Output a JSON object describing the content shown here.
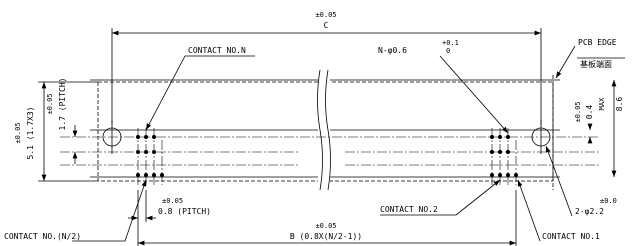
{
  "drawing": {
    "width_dim": {
      "tolerance": "±0.05",
      "label": "C"
    },
    "contact_n": "CONTACT NO.N",
    "hole_callout": {
      "label": "N-φ0.6",
      "upper_tol": "+0.1",
      "lower_tol": "0"
    },
    "pcb_edge": {
      "label": "PCB EDGE",
      "label_jp": "基板端面"
    },
    "left_dims": [
      {
        "tolerance": "±0.05",
        "label": "5.1 (1.7X3)"
      },
      {
        "tolerance": "±0.05",
        "label": "1.7 (PITCH)"
      }
    ],
    "right_dims": [
      {
        "tolerance": "±0.05",
        "label": "0.4"
      },
      {
        "label": "8.6",
        "suffix": "MAX"
      }
    ],
    "pitch_dim": {
      "tolerance": "±0.05",
      "label": "0.8 (PITCH)"
    },
    "contact_2": "CONTACT NO.2",
    "mount_hole": {
      "tolerance": "±0.0",
      "label": "2-φ2.2"
    },
    "b_dim": {
      "tolerance": "±0.05",
      "label": "B (0.8X(N/2-1))"
    },
    "contact_half": "CONTACT NO.(N/2)",
    "contact_1": "CONTACT NO.1"
  }
}
